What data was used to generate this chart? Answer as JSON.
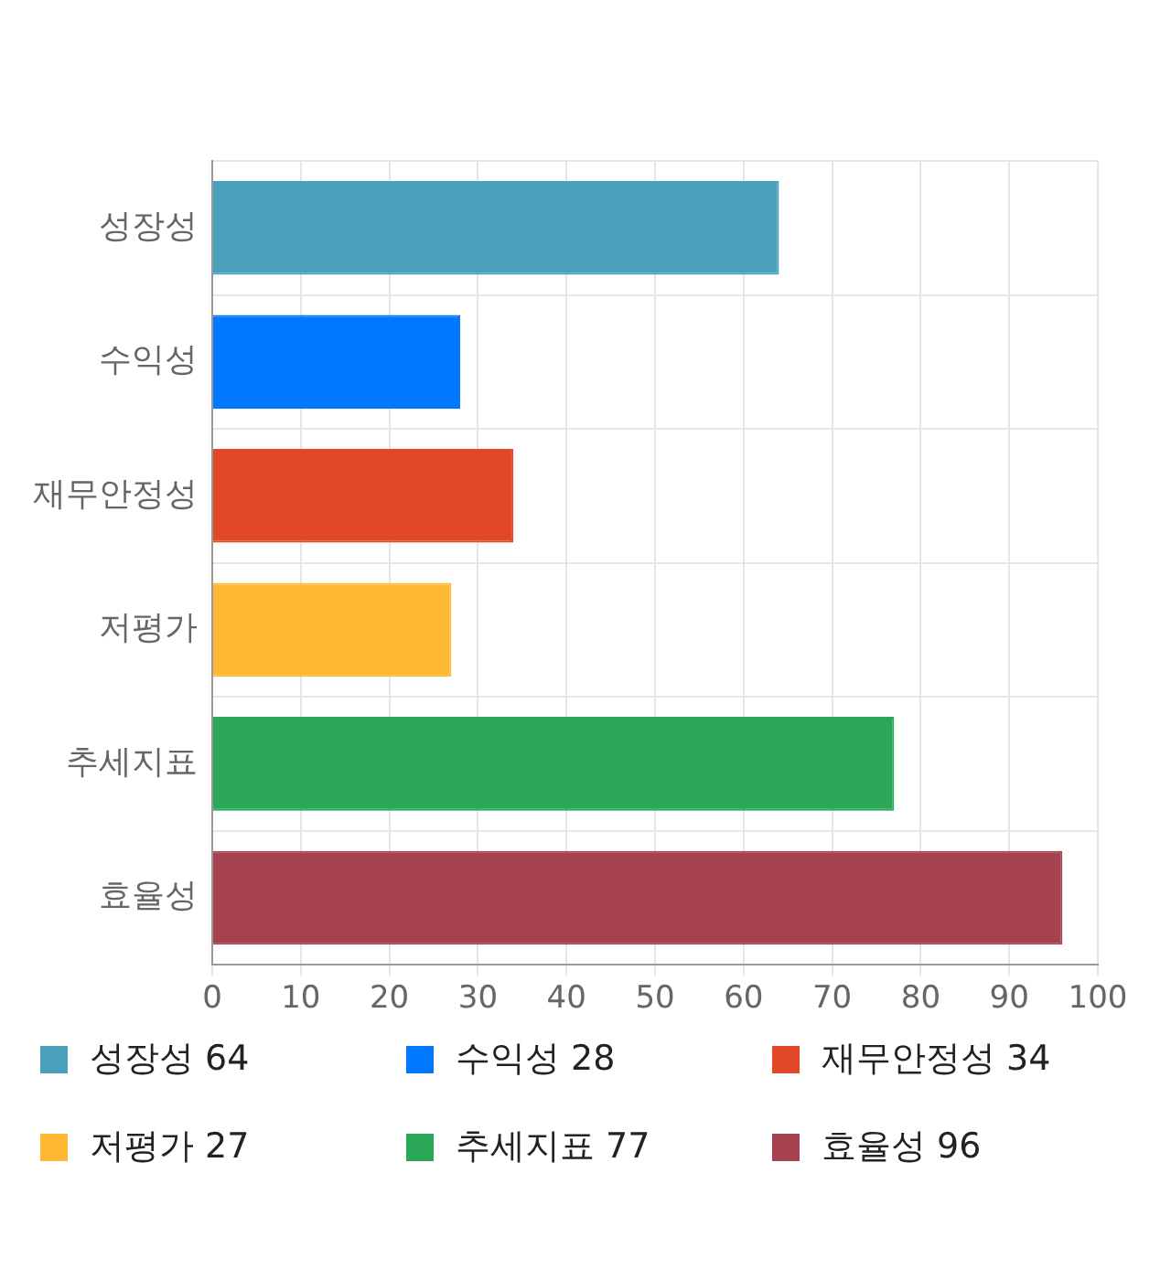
{
  "chart_data": {
    "type": "bar",
    "orientation": "horizontal",
    "categories": [
      "성장성",
      "수익성",
      "재무안정성",
      "저평가",
      "추세지표",
      "효율성"
    ],
    "values": [
      64,
      28,
      34,
      27,
      77,
      96
    ],
    "colors": [
      "#4aa0bb",
      "#0077ff",
      "#e24727",
      "#ffb833",
      "#2aa857",
      "#a6424f"
    ],
    "xlim": [
      0,
      100
    ],
    "xticks": [
      0,
      10,
      20,
      30,
      40,
      50,
      60,
      70,
      80,
      90,
      100
    ],
    "value_labels": [
      "64",
      "28",
      "34",
      "27",
      "77",
      "96"
    ],
    "grid": true
  }
}
